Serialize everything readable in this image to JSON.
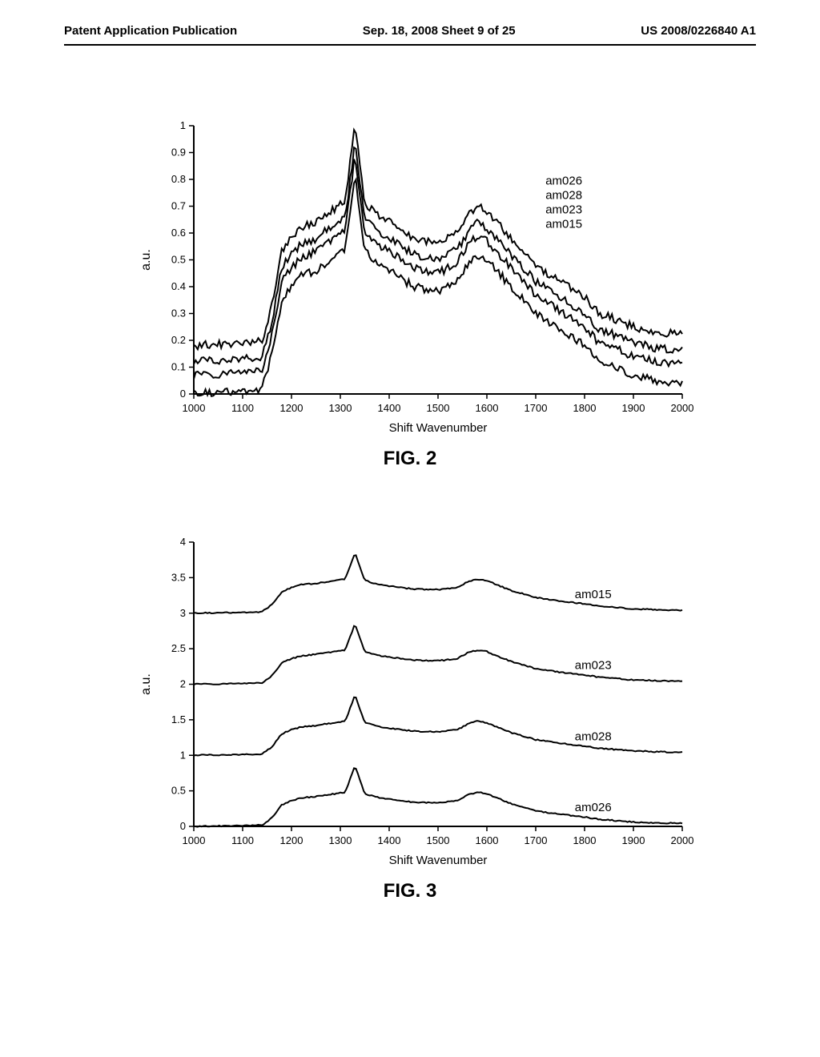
{
  "header": {
    "left": "Patent Application Publication",
    "center": "Sep. 18, 2008  Sheet 9 of 25",
    "right": "US 2008/0226840 A1"
  },
  "fig2": {
    "type": "line",
    "caption": "FIG. 2",
    "xlabel": "Shift Wavenumber",
    "ylabel": "a.u.",
    "xlim": [
      1000,
      2000
    ],
    "ylim": [
      0,
      1
    ],
    "xticks": [
      1000,
      1100,
      1200,
      1300,
      1400,
      1500,
      1600,
      1700,
      1800,
      1900,
      2000
    ],
    "yticks": [
      0,
      0.1,
      0.2,
      0.3,
      0.4,
      0.5,
      0.6,
      0.7,
      0.8,
      0.9,
      1
    ],
    "line_color": "#000000",
    "background_color": "#ffffff",
    "line_width": 2,
    "legend_labels": [
      "am026",
      "am028",
      "am023",
      "am015"
    ],
    "legend_position": "right",
    "series": [
      {
        "name": "am026",
        "offset": 0.0
      },
      {
        "name": "am028",
        "offset": 0.07
      },
      {
        "name": "am023",
        "offset": 0.12
      },
      {
        "name": "am015",
        "offset": 0.18
      }
    ],
    "base_curve_x": [
      1000,
      1100,
      1140,
      1160,
      1180,
      1200,
      1220,
      1250,
      1280,
      1310,
      1330,
      1350,
      1370,
      1400,
      1450,
      1500,
      1540,
      1560,
      1580,
      1600,
      1620,
      1650,
      1700,
      1750,
      1800,
      1830,
      1850,
      1900,
      1950,
      2000
    ],
    "base_curve_y": [
      0.0,
      0.01,
      0.02,
      0.15,
      0.35,
      0.4,
      0.44,
      0.46,
      0.5,
      0.54,
      0.82,
      0.53,
      0.5,
      0.46,
      0.4,
      0.38,
      0.42,
      0.48,
      0.52,
      0.5,
      0.46,
      0.4,
      0.3,
      0.24,
      0.18,
      0.12,
      0.11,
      0.07,
      0.05,
      0.04
    ]
  },
  "fig3": {
    "type": "line",
    "caption": "FIG. 3",
    "xlabel": "Shift Wavenumber",
    "ylabel": "a.u.",
    "xlim": [
      1000,
      2000
    ],
    "ylim": [
      0,
      4
    ],
    "xticks": [
      1000,
      1100,
      1200,
      1300,
      1400,
      1500,
      1600,
      1700,
      1800,
      1900,
      2000
    ],
    "yticks": [
      0,
      0.5,
      1,
      1.5,
      2,
      2.5,
      3,
      3.5,
      4
    ],
    "line_color": "#000000",
    "background_color": "#ffffff",
    "line_width": 2,
    "series": [
      {
        "name": "am015",
        "label": "am015",
        "offset": 3.0,
        "label_x": 1780
      },
      {
        "name": "am023",
        "label": "am023",
        "offset": 2.0,
        "label_x": 1780
      },
      {
        "name": "am028",
        "label": "am028",
        "offset": 1.0,
        "label_x": 1780
      },
      {
        "name": "am026",
        "label": "am026",
        "offset": 0.0,
        "label_x": 1780
      }
    ],
    "base_curve_x": [
      1000,
      1100,
      1140,
      1160,
      1180,
      1200,
      1220,
      1250,
      1280,
      1310,
      1330,
      1350,
      1370,
      1400,
      1450,
      1500,
      1540,
      1560,
      1580,
      1600,
      1620,
      1650,
      1700,
      1750,
      1800,
      1830,
      1850,
      1900,
      1950,
      2000
    ],
    "base_curve_y": [
      0.0,
      0.01,
      0.02,
      0.12,
      0.3,
      0.36,
      0.4,
      0.42,
      0.45,
      0.48,
      0.85,
      0.46,
      0.42,
      0.38,
      0.34,
      0.33,
      0.36,
      0.44,
      0.48,
      0.46,
      0.4,
      0.32,
      0.22,
      0.17,
      0.13,
      0.1,
      0.09,
      0.06,
      0.05,
      0.04
    ]
  }
}
